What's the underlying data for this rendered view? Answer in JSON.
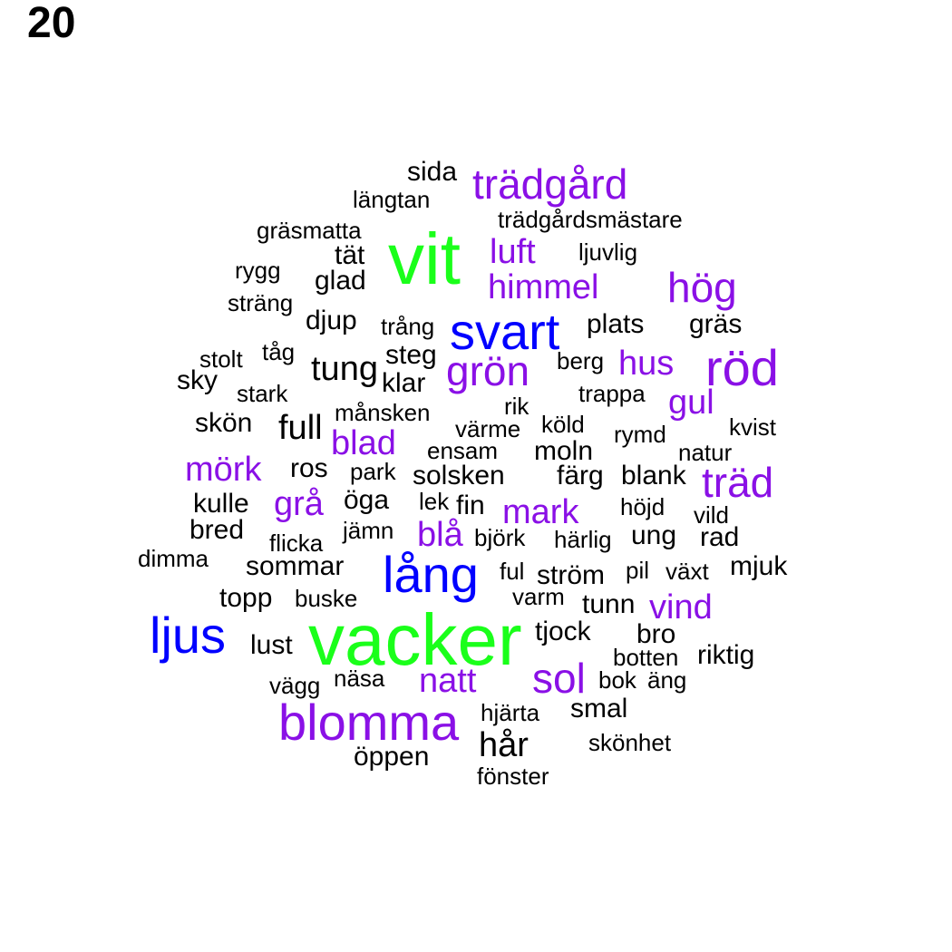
{
  "page_label": "20",
  "colors": {
    "green": "#1aff1a",
    "blue": "#0000ff",
    "purple": "#8a10e6",
    "black": "#000000"
  },
  "words": [
    "sida",
    "trädgård",
    "längtan",
    "trädgårdsmästare",
    "gräsmatta",
    "vit",
    "luft",
    "ljuvlig",
    "tät",
    "rygg",
    "glad",
    "himmel",
    "hög",
    "sträng",
    "djup",
    "trång",
    "svart",
    "plats",
    "gräs",
    "stolt",
    "tåg",
    "steg",
    "berg",
    "hus",
    "röd",
    "sky",
    "tung",
    "grön",
    "klar",
    "stark",
    "trappa",
    "gul",
    "rik",
    "skön",
    "full",
    "månsken",
    "värme",
    "köld",
    "rymd",
    "kvist",
    "blad",
    "ensam",
    "moln",
    "natur",
    "mörk",
    "ros",
    "park",
    "solsken",
    "färg",
    "blank",
    "träd",
    "kulle",
    "grå",
    "öga",
    "lek",
    "fin",
    "mark",
    "höjd",
    "vild",
    "bred",
    "jämn",
    "blå",
    "björk",
    "härlig",
    "ung",
    "rad",
    "flicka",
    "dimma",
    "sommar",
    "lång",
    "ful",
    "ström",
    "pil",
    "växt",
    "mjuk",
    "topp",
    "buske",
    "varm",
    "tunn",
    "vind",
    "ljus",
    "vacker",
    "tjock",
    "bro",
    "lust",
    "botten",
    "riktig",
    "vägg",
    "näsa",
    "natt",
    "sol",
    "bok",
    "äng",
    "blomma",
    "hjärta",
    "smal",
    "hår",
    "skönhet",
    "öppen",
    "fönster"
  ]
}
